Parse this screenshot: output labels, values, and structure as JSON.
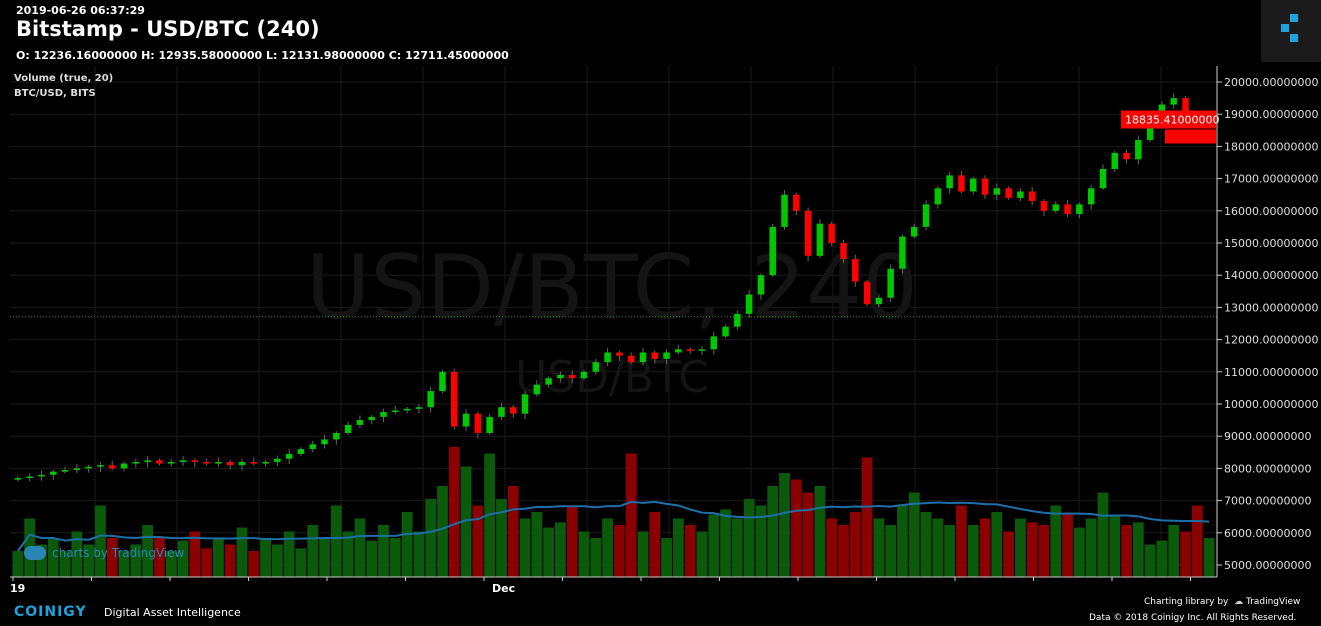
{
  "header": {
    "timestamp": "2019-06-26 06:37:29",
    "title": "Bitstamp - USD/BTC (240)",
    "ohlc": "O: 12236.16000000 H: 12935.58000000 L: 12131.98000000 C: 12711.45000000",
    "volume_label": "Volume (true, 20)",
    "symbol_label": "BTC/USD, BITS"
  },
  "watermark": {
    "main": "USD/BTC, 240",
    "sub": "USD/BTC"
  },
  "footer": {
    "tradingview_badge": "charts by TradingView",
    "brand": "COINIGY",
    "tagline": "Digital Asset Intelligence",
    "charting_library": "Charting library by",
    "tradingview": "TradingView",
    "copyright": "Data © 2018  Coinigy Inc. All Rights Reserved."
  },
  "colors": {
    "up": "#00c800",
    "down": "#ff0000",
    "vol_up": "#0b5a0b",
    "vol_down": "#8b0000",
    "vol_ma": "#1e6fa8",
    "background": "#000000",
    "last_price": "#ff0000"
  },
  "chart_data": {
    "type": "candlestick",
    "ylim": [
      5000,
      20000
    ],
    "y_ticks": [
      "20000.00000000",
      "19000.00000000",
      "18000.00000000",
      "17000.00000000",
      "16000.00000000",
      "15000.00000000",
      "14000.00000000",
      "13000.00000000",
      "12000.00000000",
      "11000.00000000",
      "10000.00000000",
      "9000.00000000",
      "8000.00000000",
      "7000.00000000",
      "6000.00000000",
      "5000.00000000"
    ],
    "x_ticks": [
      "19",
      "Dec"
    ],
    "last_price_label": "18835.41000000",
    "reference_price": 12711.45,
    "volume_ma_period": 20,
    "closes": [
      7700,
      7750,
      7800,
      7900,
      7950,
      8000,
      8050,
      8100,
      8000,
      8150,
      8200,
      8250,
      8150,
      8200,
      8250,
      8200,
      8150,
      8200,
      8100,
      8200,
      8150,
      8200,
      8300,
      8450,
      8600,
      8750,
      8900,
      9100,
      9350,
      9500,
      9600,
      9750,
      9800,
      9850,
      9900,
      10400,
      11000,
      9300,
      9700,
      9100,
      9600,
      9900,
      9700,
      10300,
      10600,
      10800,
      10900,
      10800,
      11000,
      11300,
      11600,
      11500,
      11300,
      11600,
      11400,
      11600,
      11700,
      11650,
      11700,
      12100,
      12400,
      12800,
      13400,
      14000,
      15500,
      16500,
      16000,
      14600,
      15600,
      15000,
      14500,
      13800,
      13100,
      13300,
      14200,
      15200,
      15500,
      16200,
      16700,
      17100,
      16600,
      17000,
      16500,
      16700,
      16400,
      16600,
      16300,
      16000,
      16200,
      15900,
      16200,
      16700,
      17300,
      17800,
      17600,
      18200,
      18900,
      19300,
      19500,
      19000,
      18700,
      18835
    ],
    "volumes": [
      20,
      45,
      25,
      30,
      20,
      35,
      25,
      55,
      30,
      20,
      25,
      40,
      30,
      20,
      28,
      35,
      22,
      30,
      25,
      38,
      20,
      30,
      25,
      35,
      22,
      40,
      30,
      55,
      35,
      45,
      28,
      40,
      30,
      50,
      35,
      60,
      70,
      100,
      85,
      55,
      95,
      60,
      70,
      45,
      50,
      38,
      42,
      55,
      35,
      30,
      45,
      40,
      95,
      35,
      50,
      30,
      45,
      40,
      35,
      48,
      52,
      45,
      60,
      55,
      70,
      80,
      75,
      65,
      70,
      45,
      40,
      50,
      92,
      45,
      40,
      55,
      65,
      50,
      45,
      40,
      55,
      40,
      45,
      50,
      35,
      45,
      42,
      40,
      55,
      48,
      38,
      45,
      65,
      48,
      40,
      42,
      25,
      28,
      40,
      35,
      55,
      30
    ]
  }
}
